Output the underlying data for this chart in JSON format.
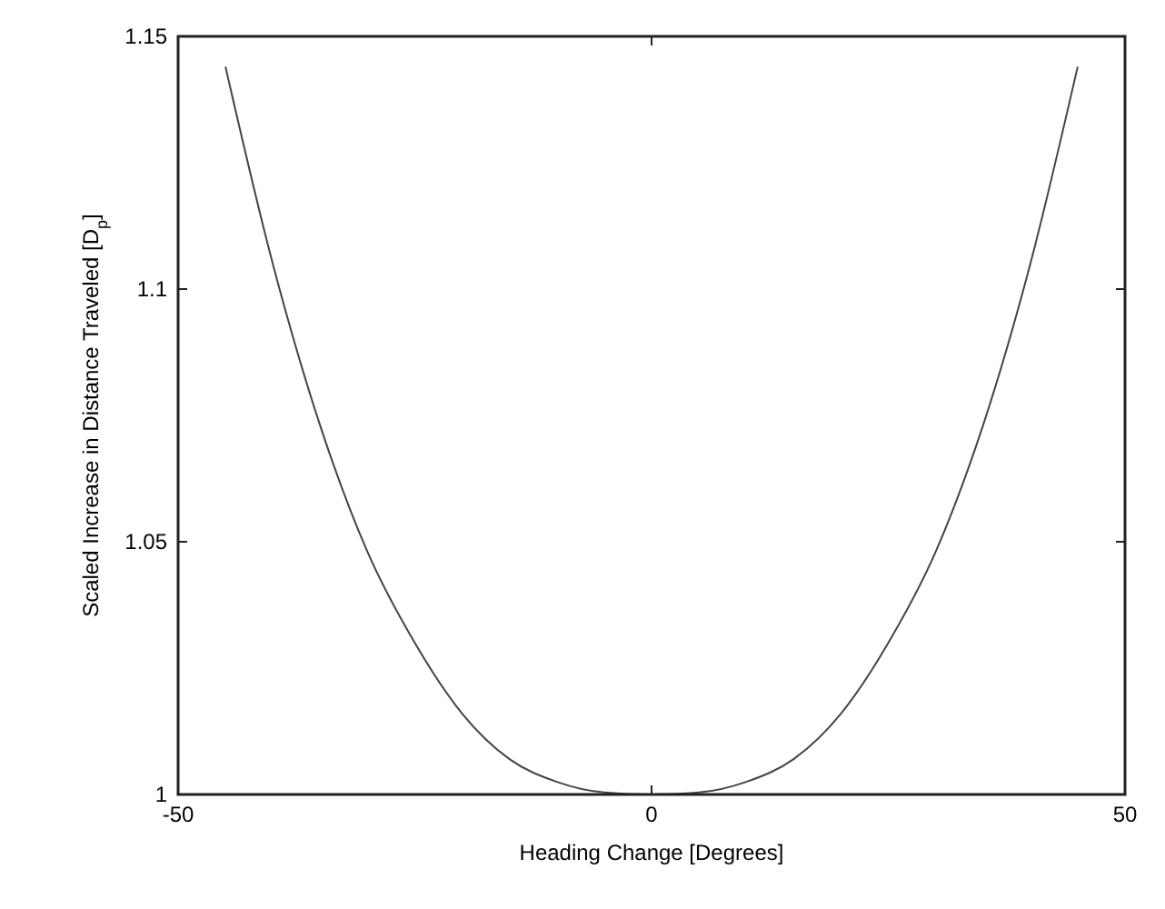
{
  "chart_data": {
    "type": "line",
    "xlabel": "Heading Change [Degrees]",
    "ylabel": "Scaled Increase in Distance Traveled [D$_{p}$]",
    "x": [
      -45,
      -40,
      -35,
      -30,
      -25,
      -20,
      -15,
      -10,
      -5,
      0,
      5,
      10,
      15,
      20,
      25,
      30,
      35,
      40,
      45
    ],
    "series": [
      {
        "color": "#444444",
        "values": [
          1.144,
          1.105,
          1.073,
          1.048,
          1.03,
          1.016,
          1.007,
          1.0025,
          1.0004,
          1,
          1.0004,
          1.0025,
          1.007,
          1.016,
          1.03,
          1.048,
          1.073,
          1.105,
          1.144
        ]
      }
    ],
    "xlim": [
      -50,
      50
    ],
    "xticks": [
      -50,
      0,
      50
    ],
    "ylim": [
      1,
      1.15
    ],
    "yticks": [
      1,
      1.05,
      1.1,
      1.15
    ],
    "line_style": "solid"
  }
}
